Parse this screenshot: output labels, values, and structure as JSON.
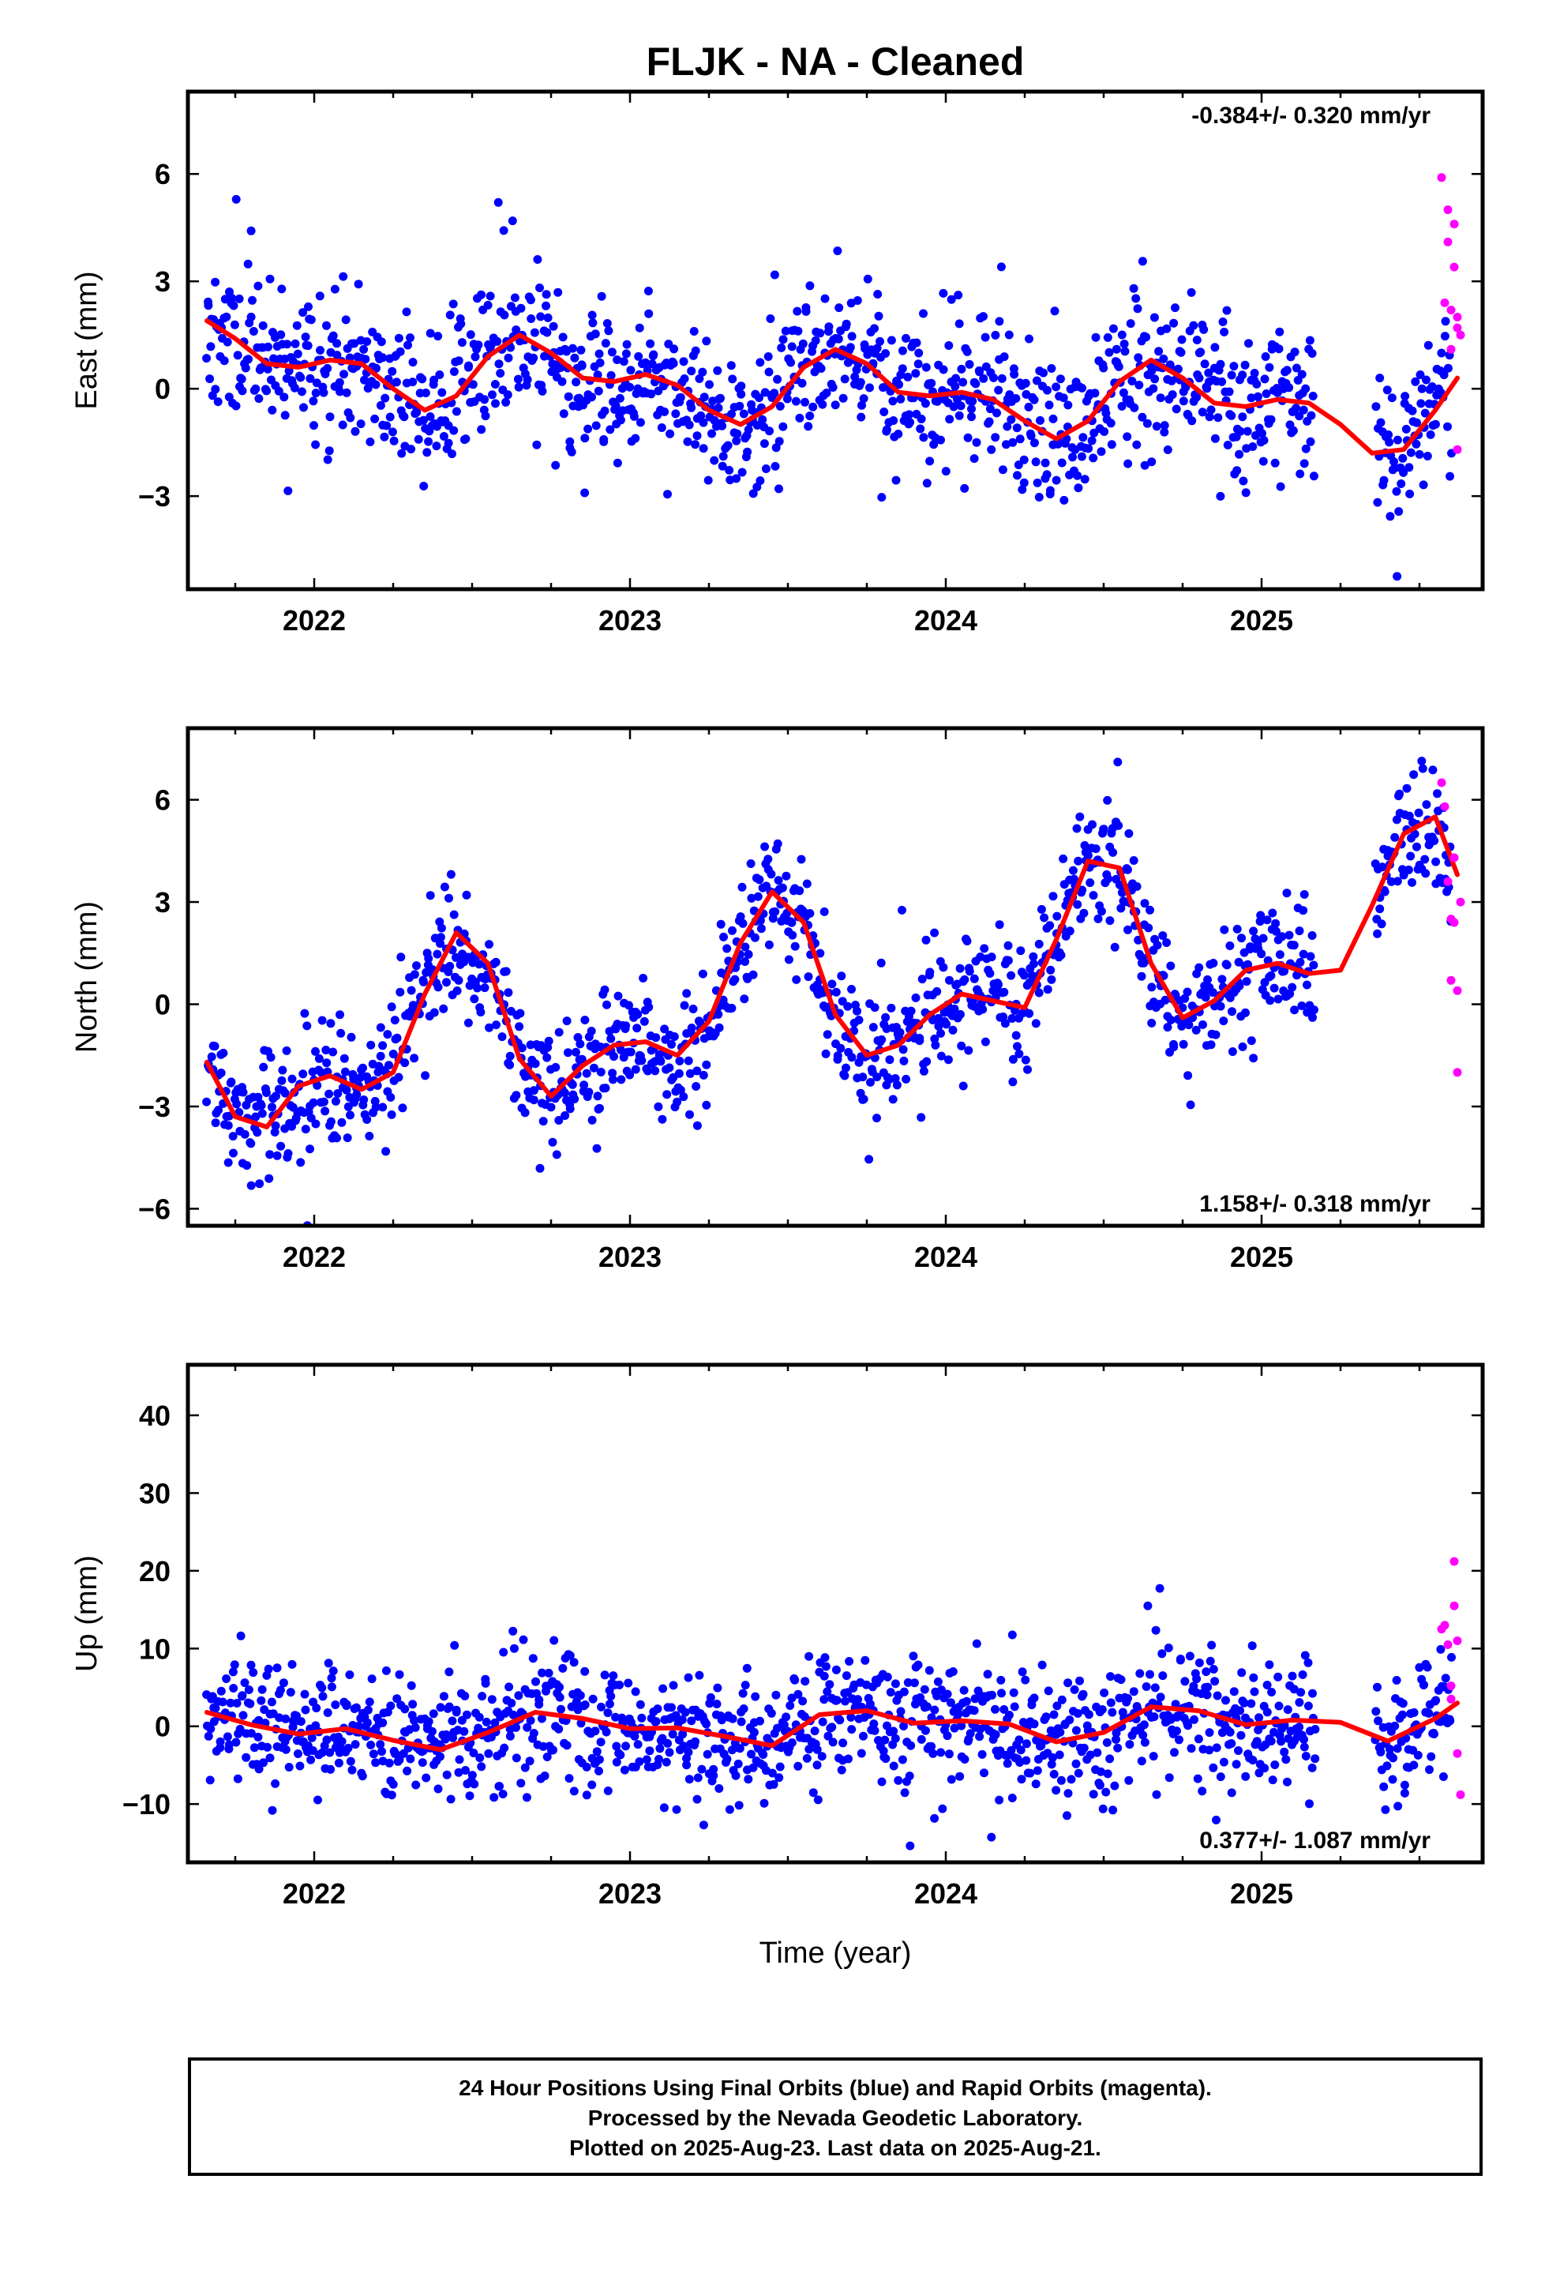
{
  "title": "FLJK  - NA - Cleaned",
  "xlabel": "Time (year)",
  "caption": [
    "24 Hour Positions Using Final Orbits (blue) and Rapid Orbits (magenta).",
    "Processed by the Nevada Geodetic Laboratory.",
    "Plotted on 2025-Aug-23. Last data on 2025-Aug-21."
  ],
  "colors": {
    "final": "#0000ff",
    "rapid": "#ff00ff",
    "fit": "#ff0000",
    "axis": "#000000"
  },
  "chart_data": [
    {
      "type": "scatter",
      "ylabel": "East (mm)",
      "rate_label": "-0.384+/- 0.320 mm/yr",
      "rate_position": "top-right",
      "xlim": [
        2021.6,
        2025.7
      ],
      "ylim": [
        -5.6,
        8.3
      ],
      "xticks": [
        "2022",
        "2023",
        "2024",
        "2025"
      ],
      "yticks": [
        -3,
        0,
        3,
        6
      ],
      "seed": 11,
      "series": [
        {
          "name": "Final Orbits",
          "kind": "points",
          "x_start": 2021.66,
          "x_end": 2025.6,
          "gap": [
            2025.17,
            2025.36
          ],
          "count": 1250,
          "noise": 1.1
        },
        {
          "name": "Rapid Orbits",
          "kind": "points",
          "x": [
            2025.57,
            2025.58,
            2025.59,
            2025.59,
            2025.6,
            2025.6,
            2025.61,
            2025.61,
            2025.62,
            2025.62,
            2025.62,
            2025.63
          ],
          "y": [
            5.9,
            2.4,
            5.0,
            4.1,
            2.2,
            1.1,
            4.6,
            3.4,
            2.0,
            1.7,
            -1.7,
            1.5
          ]
        },
        {
          "name": "Model fit",
          "kind": "curve",
          "x": [
            2021.66,
            2021.75,
            2021.85,
            2021.95,
            2022.05,
            2022.15,
            2022.25,
            2022.35,
            2022.45,
            2022.55,
            2022.65,
            2022.75,
            2022.85,
            2022.95,
            2023.05,
            2023.15,
            2023.25,
            2023.35,
            2023.45,
            2023.55,
            2023.65,
            2023.75,
            2023.85,
            2023.95,
            2024.05,
            2024.15,
            2024.25,
            2024.35,
            2024.45,
            2024.55,
            2024.65,
            2024.75,
            2024.85,
            2024.95,
            2025.05,
            2025.15,
            2025.25,
            2025.35,
            2025.45,
            2025.55,
            2025.62
          ],
          "y": [
            1.9,
            1.4,
            0.7,
            0.6,
            0.8,
            0.7,
            0.0,
            -0.6,
            -0.2,
            0.9,
            1.5,
            1.0,
            0.3,
            0.2,
            0.4,
            0.1,
            -0.6,
            -1.0,
            -0.5,
            0.6,
            1.1,
            0.7,
            -0.1,
            -0.2,
            -0.1,
            -0.3,
            -0.9,
            -1.4,
            -0.9,
            0.2,
            0.8,
            0.3,
            -0.4,
            -0.5,
            -0.3,
            -0.4,
            -1.0,
            -1.8,
            -1.7,
            -0.6,
            0.3
          ]
        }
      ]
    },
    {
      "type": "scatter",
      "ylabel": "North (mm)",
      "rate_label": "1.158+/- 0.318 mm/yr",
      "rate_position": "bottom-right",
      "xlim": [
        2021.6,
        2025.7
      ],
      "ylim": [
        -6.5,
        8.1
      ],
      "xticks": [
        "2022",
        "2023",
        "2024",
        "2025"
      ],
      "yticks": [
        -6,
        -3,
        0,
        3,
        6
      ],
      "seed": 23,
      "series": [
        {
          "name": "Final Orbits",
          "kind": "points",
          "x_start": 2021.66,
          "x_end": 2025.6,
          "gap": [
            2025.17,
            2025.36
          ],
          "count": 1250,
          "noise": 0.9
        },
        {
          "name": "Rapid Orbits",
          "kind": "points",
          "x": [
            2025.57,
            2025.58,
            2025.59,
            2025.6,
            2025.6,
            2025.61,
            2025.61,
            2025.62,
            2025.62,
            2025.63
          ],
          "y": [
            6.5,
            5.8,
            3.6,
            2.5,
            0.7,
            4.3,
            2.4,
            0.4,
            -2.0,
            3.0
          ]
        },
        {
          "name": "Model fit",
          "kind": "curve",
          "x": [
            2021.66,
            2021.75,
            2021.85,
            2021.95,
            2022.05,
            2022.15,
            2022.25,
            2022.35,
            2022.45,
            2022.55,
            2022.65,
            2022.75,
            2022.85,
            2022.95,
            2023.05,
            2023.15,
            2023.25,
            2023.35,
            2023.45,
            2023.55,
            2023.65,
            2023.75,
            2023.85,
            2023.95,
            2024.05,
            2024.15,
            2024.25,
            2024.35,
            2024.45,
            2024.55,
            2024.65,
            2024.75,
            2024.85,
            2024.95,
            2025.05,
            2025.15,
            2025.25,
            2025.35,
            2025.45,
            2025.55,
            2025.62
          ],
          "y": [
            -1.7,
            -3.3,
            -3.6,
            -2.4,
            -2.1,
            -2.5,
            -2.0,
            0.3,
            2.1,
            1.2,
            -1.6,
            -2.7,
            -1.8,
            -1.2,
            -1.1,
            -1.5,
            -0.5,
            1.8,
            3.3,
            2.4,
            -0.3,
            -1.5,
            -1.2,
            -0.3,
            0.3,
            0.1,
            -0.1,
            1.9,
            4.2,
            4.0,
            1.2,
            -0.4,
            0.1,
            1.0,
            1.2,
            0.9,
            1.0,
            2.9,
            5.0,
            5.5,
            3.8
          ]
        }
      ]
    },
    {
      "type": "scatter",
      "ylabel": "Up (mm)",
      "rate_label": "0.377+/- 1.087 mm/yr",
      "rate_position": "bottom-right",
      "xlim": [
        2021.6,
        2025.7
      ],
      "ylim": [
        -17.5,
        46.5
      ],
      "xticks": [
        "2022",
        "2023",
        "2024",
        "2025"
      ],
      "yticks": [
        -10,
        0,
        10,
        20,
        30,
        40
      ],
      "seed": 37,
      "series": [
        {
          "name": "Final Orbits",
          "kind": "points",
          "x_start": 2021.66,
          "x_end": 2025.6,
          "gap": [
            2025.17,
            2025.36
          ],
          "count": 1250,
          "noise": 4.2
        },
        {
          "name": "Rapid Orbits",
          "kind": "points",
          "x": [
            2025.57,
            2025.58,
            2025.59,
            2025.6,
            2025.6,
            2025.61,
            2025.61,
            2025.62,
            2025.62,
            2025.63
          ],
          "y": [
            12.5,
            13.0,
            10.5,
            5.2,
            3.5,
            21.2,
            15.5,
            11.0,
            -3.5,
            -8.8
          ]
        },
        {
          "name": "Model fit",
          "kind": "curve",
          "x": [
            2021.66,
            2021.8,
            2021.95,
            2022.1,
            2022.25,
            2022.4,
            2022.55,
            2022.7,
            2022.85,
            2023.0,
            2023.15,
            2023.3,
            2023.45,
            2023.6,
            2023.75,
            2023.9,
            2024.05,
            2024.2,
            2024.35,
            2024.5,
            2024.65,
            2024.8,
            2024.95,
            2025.1,
            2025.25,
            2025.4,
            2025.55,
            2025.62
          ],
          "y": [
            1.8,
            0.2,
            -1.0,
            -0.3,
            -1.8,
            -3.0,
            -0.8,
            1.8,
            1.0,
            -0.3,
            -0.2,
            -1.3,
            -2.5,
            1.5,
            2.0,
            0.4,
            0.7,
            0.3,
            -2.0,
            -0.8,
            2.5,
            2.0,
            0.2,
            0.8,
            0.5,
            -1.9,
            1.0,
            3.0
          ]
        }
      ]
    }
  ]
}
